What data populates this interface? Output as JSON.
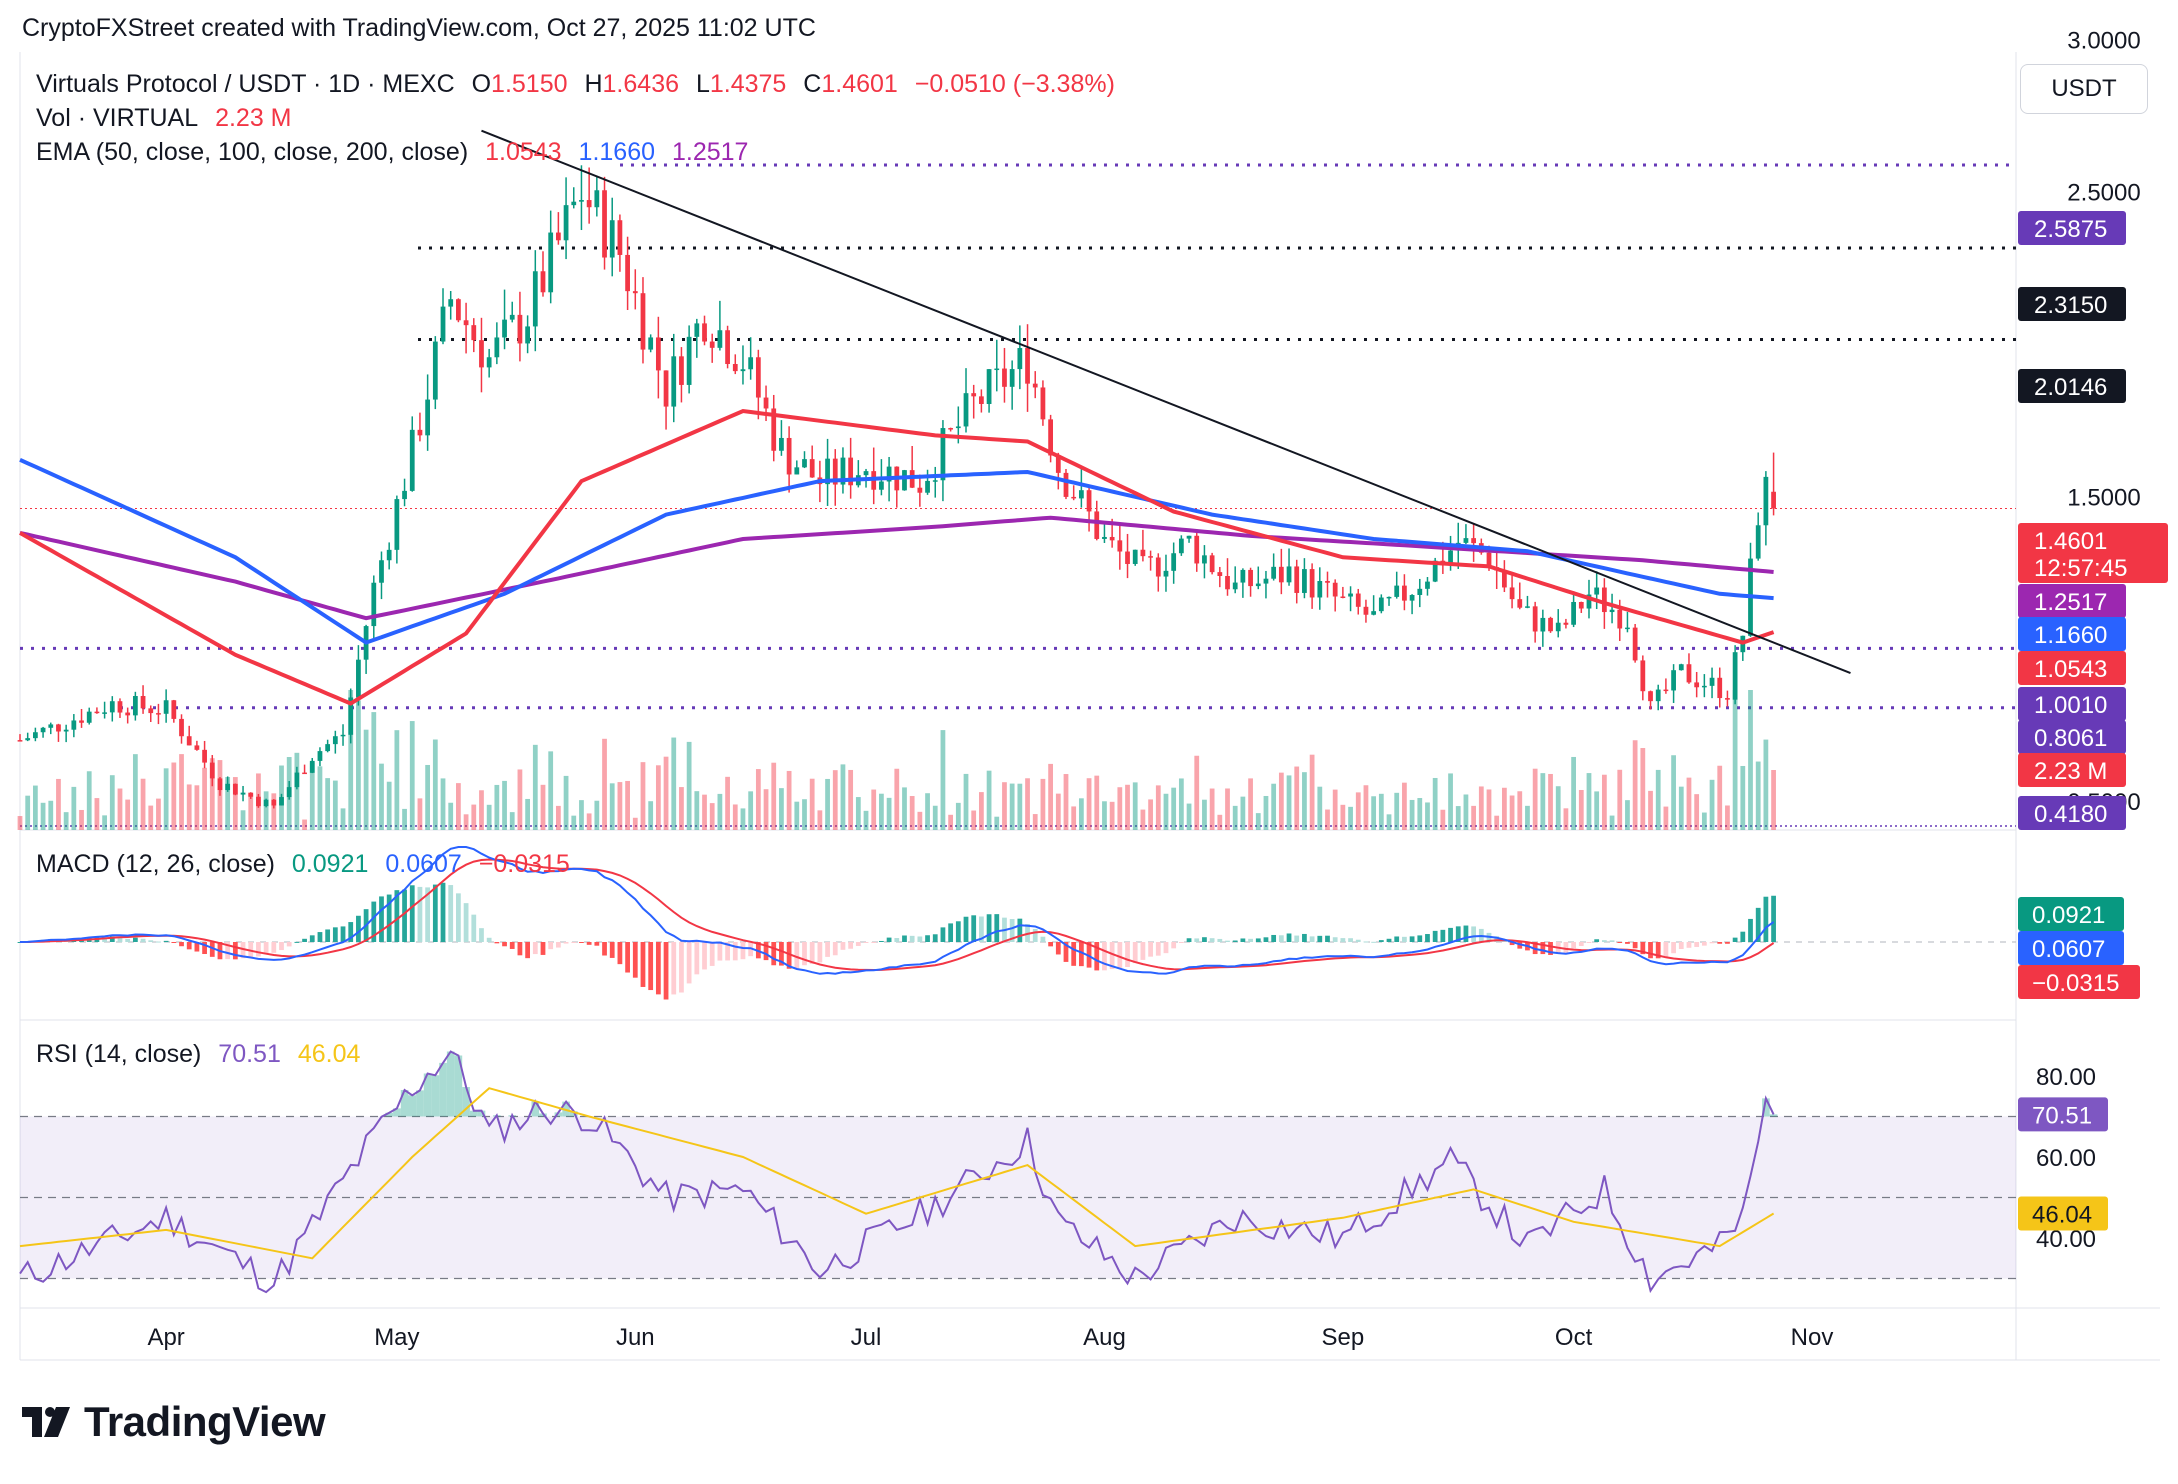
{
  "header": {
    "caption": "CryptoFXStreet created with TradingView.com, Oct 27, 2025 11:02 UTC"
  },
  "main_legend": {
    "symbol": "Virtuals Protocol / USDT · 1D · MEXC",
    "open_label": "O",
    "open": "1.5150",
    "high_label": "H",
    "high": "1.6436",
    "low_label": "L",
    "low": "1.4375",
    "close_label": "C",
    "close": "1.4601",
    "change": "−0.0510 (−3.38%)"
  },
  "vol_legend": {
    "label": "Vol · VIRTUAL",
    "value": "2.23 M"
  },
  "ema_legend": {
    "label": "EMA (50, close, 100, close, 200, close)",
    "ema50": "1.0543",
    "ema100": "1.1660",
    "ema200": "1.2517"
  },
  "macd_legend": {
    "label": "MACD (12, 26, close)",
    "hist": "0.0921",
    "macd": "0.0607",
    "signal": "−0.0315"
  },
  "rsi_legend": {
    "label": "RSI (14, close)",
    "rsi": "70.51",
    "ma": "46.04"
  },
  "currency_button": "USDT",
  "price_axis": {
    "ticks": [
      "2.5000",
      "1.5000",
      "0.5000"
    ],
    "top_partial": "3.0000",
    "badges": [
      {
        "text": "2.5875",
        "value": 2.5875,
        "color": "#673ab7"
      },
      {
        "text": "2.3150",
        "value": 2.315,
        "color": "#131722"
      },
      {
        "text": "2.0146",
        "value": 2.0146,
        "color": "#131722"
      },
      {
        "text": "1.4601",
        "sub": "12:57:45",
        "value": 1.4601,
        "color": "#f23645"
      },
      {
        "text": "1.2517",
        "value": 1.2517,
        "color": "#9c27b0"
      },
      {
        "text": "1.1660",
        "value": 1.166,
        "color": "#2962ff"
      },
      {
        "text": "1.0543",
        "value": 1.0543,
        "color": "#f23645"
      },
      {
        "text": "1.0010",
        "value": 1.001,
        "color": "#673ab7"
      },
      {
        "text": "0.8061",
        "value": 0.8061,
        "color": "#673ab7"
      },
      {
        "text": "2.23 M",
        "value": 0.73,
        "color": "#f23645"
      },
      {
        "text": "0.4180",
        "value": 0.418,
        "color": "#673ab7"
      }
    ]
  },
  "macd_axis": {
    "badges": [
      {
        "text": "0.0921",
        "color": "#089981"
      },
      {
        "text": "0.0607",
        "color": "#2962ff"
      },
      {
        "text": "−0.0315",
        "color": "#f23645"
      }
    ]
  },
  "rsi_axis": {
    "ticks": [
      "80.00",
      "60.00",
      "40.00"
    ],
    "badges": [
      {
        "text": "70.51",
        "value": 70.51,
        "color": "#7e57c2"
      },
      {
        "text": "46.04",
        "value": 46.04,
        "color": "#f5c518"
      }
    ]
  },
  "time_axis": {
    "labels": [
      "Apr",
      "May",
      "Jun",
      "Jul",
      "Aug",
      "Sep",
      "Oct",
      "Nov"
    ]
  },
  "branding": {
    "logo_text": "TradingView"
  },
  "colors": {
    "up": "#089981",
    "down": "#f23645",
    "ema50": "#f23645",
    "ema100": "#2962ff",
    "ema200": "#9c27b0",
    "rsi": "#7e57c2",
    "rsi_ma": "#f5c518",
    "level": "#673ab7"
  },
  "chart_data": [
    {
      "type": "candlestick",
      "title": "Virtuals Protocol / USDT · 1D · MEXC",
      "y_range": [
        0.4,
        3.0
      ],
      "horizontal_levels": [
        2.5875,
        2.315,
        2.0146,
        1.001,
        0.8061,
        0.418
      ],
      "trendline": {
        "from": [
          "2025-05-12",
          2.7
        ],
        "to": [
          "2025-11-06",
          0.92
        ]
      },
      "price_path": [
        [
          "2025-03-13",
          0.7
        ],
        [
          "2025-03-25",
          0.82
        ],
        [
          "2025-04-01",
          0.8
        ],
        [
          "2025-04-08",
          0.56
        ],
        [
          "2025-04-15",
          0.48
        ],
        [
          "2025-04-20",
          0.65
        ],
        [
          "2025-04-24",
          0.72
        ],
        [
          "2025-04-28",
          1.2
        ],
        [
          "2025-05-03",
          1.65
        ],
        [
          "2025-05-08",
          2.15
        ],
        [
          "2025-05-13",
          1.95
        ],
        [
          "2025-05-18",
          2.1
        ],
        [
          "2025-05-25",
          2.5
        ],
        [
          "2025-05-30",
          2.3
        ],
        [
          "2025-06-05",
          1.85
        ],
        [
          "2025-06-10",
          2.1
        ],
        [
          "2025-06-15",
          1.95
        ],
        [
          "2025-06-20",
          1.65
        ],
        [
          "2025-06-25",
          1.55
        ],
        [
          "2025-07-01",
          1.6
        ],
        [
          "2025-07-08",
          1.55
        ],
        [
          "2025-07-15",
          1.8
        ],
        [
          "2025-07-22",
          1.95
        ],
        [
          "2025-07-26",
          1.6
        ],
        [
          "2025-08-01",
          1.35
        ],
        [
          "2025-08-06",
          1.25
        ],
        [
          "2025-08-12",
          1.35
        ],
        [
          "2025-08-18",
          1.2
        ],
        [
          "2025-08-25",
          1.25
        ],
        [
          "2025-09-01",
          1.15
        ],
        [
          "2025-09-05",
          1.1
        ],
        [
          "2025-09-10",
          1.2
        ],
        [
          "2025-09-16",
          1.35
        ],
        [
          "2025-09-20",
          1.3
        ],
        [
          "2025-09-24",
          1.12
        ],
        [
          "2025-09-29",
          1.05
        ],
        [
          "2025-10-03",
          1.18
        ],
        [
          "2025-10-08",
          1.1
        ],
        [
          "2025-10-11",
          0.8
        ],
        [
          "2025-10-15",
          0.92
        ],
        [
          "2025-10-21",
          0.86
        ],
        [
          "2025-10-23",
          1.05
        ],
        [
          "2025-10-25",
          1.45
        ],
        [
          "2025-10-26",
          1.52
        ],
        [
          "2025-10-27",
          1.4601
        ]
      ],
      "ema50_path": [
        [
          "2025-03-13",
          1.38
        ],
        [
          "2025-04-10",
          0.98
        ],
        [
          "2025-04-25",
          0.82
        ],
        [
          "2025-05-10",
          1.05
        ],
        [
          "2025-05-25",
          1.55
        ],
        [
          "2025-06-15",
          1.78
        ],
        [
          "2025-07-10",
          1.7
        ],
        [
          "2025-07-22",
          1.68
        ],
        [
          "2025-08-10",
          1.45
        ],
        [
          "2025-09-01",
          1.3
        ],
        [
          "2025-09-20",
          1.27
        ],
        [
          "2025-10-05",
          1.15
        ],
        [
          "2025-10-23",
          1.02
        ],
        [
          "2025-10-27",
          1.0543
        ]
      ],
      "ema100_path": [
        [
          "2025-03-13",
          1.62
        ],
        [
          "2025-04-10",
          1.3
        ],
        [
          "2025-04-27",
          1.02
        ],
        [
          "2025-05-15",
          1.18
        ],
        [
          "2025-06-05",
          1.44
        ],
        [
          "2025-06-25",
          1.55
        ],
        [
          "2025-07-22",
          1.58
        ],
        [
          "2025-08-15",
          1.44
        ],
        [
          "2025-09-05",
          1.36
        ],
        [
          "2025-09-25",
          1.32
        ],
        [
          "2025-10-20",
          1.18
        ],
        [
          "2025-10-27",
          1.166
        ]
      ],
      "ema200_path": [
        [
          "2025-03-13",
          1.38
        ],
        [
          "2025-04-10",
          1.22
        ],
        [
          "2025-04-27",
          1.1
        ],
        [
          "2025-05-20",
          1.22
        ],
        [
          "2025-06-15",
          1.36
        ],
        [
          "2025-07-10",
          1.4
        ],
        [
          "2025-07-25",
          1.43
        ],
        [
          "2025-08-20",
          1.37
        ],
        [
          "2025-09-15",
          1.33
        ],
        [
          "2025-10-10",
          1.29
        ],
        [
          "2025-10-27",
          1.2517
        ]
      ],
      "volume_last": "2.23 M"
    },
    {
      "type": "line",
      "title": "MACD (12, 26, close)",
      "series": [
        {
          "name": "MACD",
          "last": 0.0607
        },
        {
          "name": "Signal",
          "last": -0.0315
        },
        {
          "name": "Histogram",
          "last": 0.0921
        }
      ]
    },
    {
      "type": "line",
      "title": "RSI (14, close)",
      "y_range": [
        20,
        90
      ],
      "bands": [
        30,
        50,
        70
      ],
      "rsi_path": [
        [
          "2025-03-13",
          30
        ],
        [
          "2025-04-01",
          45
        ],
        [
          "2025-04-15",
          29
        ],
        [
          "2025-04-28",
          65
        ],
        [
          "2025-05-03",
          77
        ],
        [
          "2025-05-08",
          86
        ],
        [
          "2025-05-13",
          66
        ],
        [
          "2025-05-20",
          72
        ],
        [
          "2025-05-26",
          70
        ],
        [
          "2025-06-05",
          50
        ],
        [
          "2025-06-15",
          52
        ],
        [
          "2025-06-25",
          32
        ],
        [
          "2025-07-10",
          48
        ],
        [
          "2025-07-22",
          64
        ],
        [
          "2025-07-26",
          44
        ],
        [
          "2025-08-05",
          30
        ],
        [
          "2025-08-18",
          45
        ],
        [
          "2025-09-01",
          40
        ],
        [
          "2025-09-15",
          59
        ],
        [
          "2025-09-25",
          38
        ],
        [
          "2025-10-05",
          52
        ],
        [
          "2025-10-11",
          30
        ],
        [
          "2025-10-20",
          38
        ],
        [
          "2025-10-23",
          45
        ],
        [
          "2025-10-26",
          73
        ],
        [
          "2025-10-27",
          70.51
        ]
      ],
      "rsi_ma_path": [
        [
          "2025-03-13",
          38
        ],
        [
          "2025-04-01",
          42
        ],
        [
          "2025-04-20",
          35
        ],
        [
          "2025-05-03",
          60
        ],
        [
          "2025-05-13",
          77
        ],
        [
          "2025-05-26",
          70
        ],
        [
          "2025-06-15",
          60
        ],
        [
          "2025-07-01",
          46
        ],
        [
          "2025-07-22",
          58
        ],
        [
          "2025-08-05",
          38
        ],
        [
          "2025-09-01",
          45
        ],
        [
          "2025-09-18",
          52
        ],
        [
          "2025-10-01",
          44
        ],
        [
          "2025-10-20",
          38
        ],
        [
          "2025-10-27",
          46.04
        ]
      ],
      "last_rsi": 70.51,
      "last_ma": 46.04
    }
  ]
}
